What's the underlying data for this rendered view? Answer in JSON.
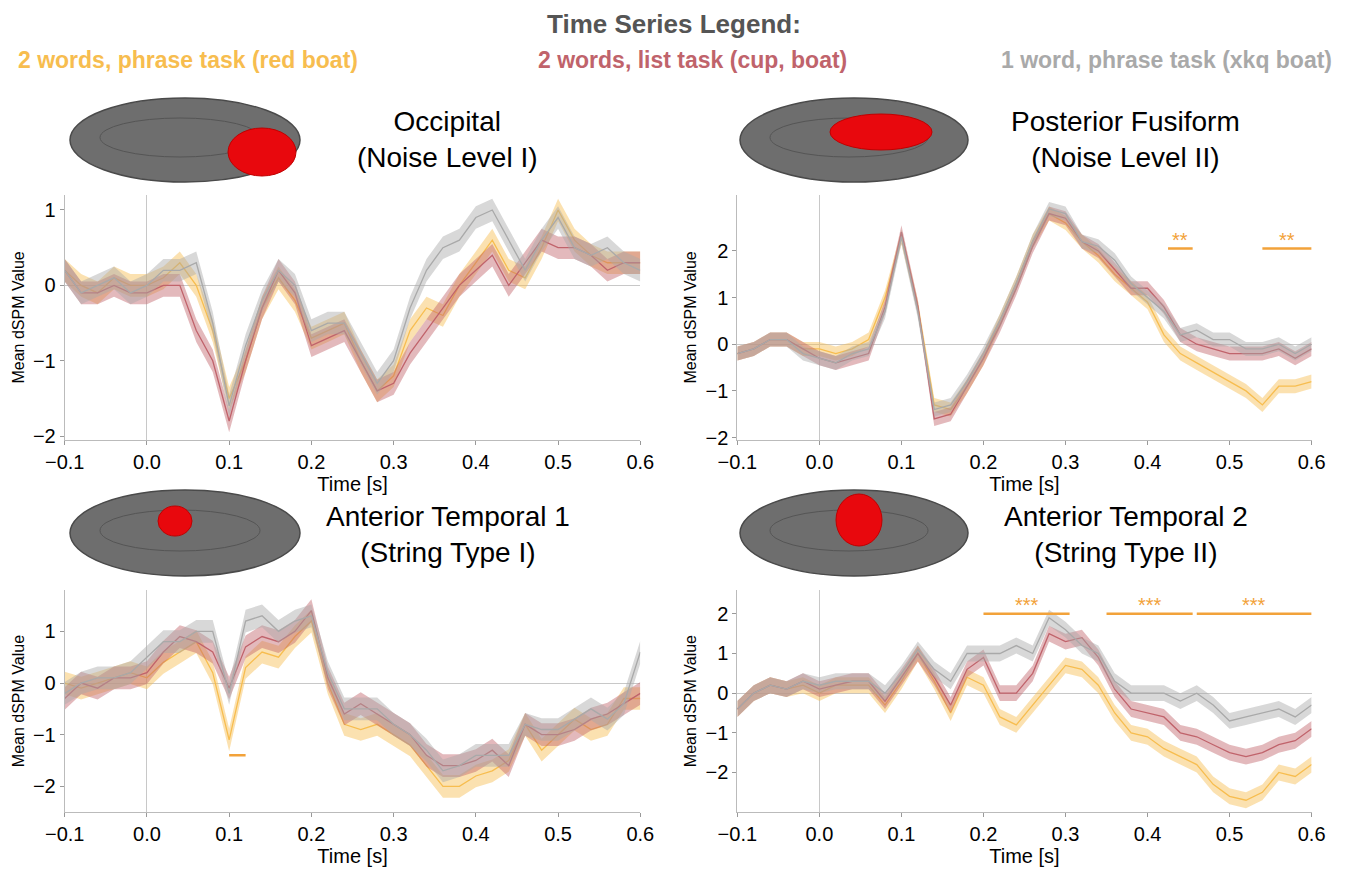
{
  "legend_title": "Time Series Legend:",
  "legend": "top",
  "chart_data": [
    {
      "type": "line",
      "title": "Occipital",
      "subtitle": "(Noise Level I)",
      "xlabel": "Time [s]",
      "ylabel": "Mean dSPM Value",
      "x": [
        -0.1,
        -0.08,
        -0.06,
        -0.04,
        -0.02,
        0,
        0.02,
        0.04,
        0.06,
        0.08,
        0.1,
        0.12,
        0.14,
        0.16,
        0.18,
        0.2,
        0.22,
        0.24,
        0.26,
        0.28,
        0.3,
        0.32,
        0.34,
        0.36,
        0.38,
        0.4,
        0.42,
        0.44,
        0.46,
        0.48,
        0.5,
        0.52,
        0.54,
        0.56,
        0.58,
        0.6
      ],
      "xlim": [
        -0.1,
        0.6
      ],
      "xticks": [
        {
          "value": -0.1,
          "label": "−0.1"
        },
        {
          "value": 0,
          "label": "0.0"
        },
        0.1,
        0.2,
        0.3,
        0.4,
        0.5,
        0.6
      ],
      "ylim": [
        -2.05,
        1.2
      ],
      "yticks": [
        {
          "value": -2,
          "label": "−2"
        },
        {
          "value": -1,
          "label": "−1"
        },
        0,
        1
      ],
      "series": [
        {
          "name": "2 words, phrase task (red boat)",
          "color": "#f7bd4f",
          "error": 0.15,
          "values": [
            0.2,
            0,
            -0.1,
            0.1,
            0,
            0,
            0.1,
            0.3,
            0,
            -0.6,
            -1.5,
            -1.0,
            -0.3,
            0.1,
            -0.2,
            -0.7,
            -0.6,
            -0.5,
            -1.0,
            -1.4,
            -1.2,
            -0.6,
            -0.3,
            -0.4,
            0.0,
            0.3,
            0.6,
            0.2,
            0.1,
            0.5,
            1.0,
            0.6,
            0.4,
            0.3,
            0.3,
            0.3
          ]
        },
        {
          "name": "2 words, list task (cup, boat)",
          "color": "#c0636b",
          "error": 0.15,
          "values": [
            0.2,
            -0.1,
            -0.1,
            0,
            -0.1,
            -0.1,
            0.0,
            0.0,
            -0.6,
            -1.0,
            -1.8,
            -1.0,
            -0.3,
            0.2,
            -0.1,
            -0.8,
            -0.7,
            -0.6,
            -1.0,
            -1.4,
            -1.3,
            -0.9,
            -0.6,
            -0.3,
            0.0,
            0.2,
            0.4,
            0.0,
            0.3,
            0.6,
            0.5,
            0.5,
            0.4,
            0.2,
            0.3,
            0.3
          ]
        },
        {
          "name": "1 word, phrase task (xkq boat)",
          "color": "#a9a9a9",
          "error": 0.15,
          "values": [
            0.2,
            -0.1,
            0,
            0.1,
            -0.1,
            0.0,
            0.2,
            0.2,
            0.3,
            -0.5,
            -1.6,
            -0.8,
            -0.2,
            0.2,
            0.0,
            -0.6,
            -0.5,
            -0.5,
            -0.9,
            -1.3,
            -1.0,
            -0.3,
            0.2,
            0.5,
            0.6,
            0.9,
            1.0,
            0.6,
            0.2,
            0.6,
            0.9,
            0.5,
            0.4,
            0.5,
            0.3,
            0.2
          ]
        }
      ],
      "significance": []
    },
    {
      "type": "line",
      "title": "Posterior Fusiform",
      "subtitle": "(Noise Level II)",
      "xlabel": "Time [s]",
      "ylabel": "Mean dSPM Value",
      "x": [
        -0.1,
        -0.08,
        -0.06,
        -0.04,
        -0.02,
        0,
        0.02,
        0.04,
        0.06,
        0.08,
        0.1,
        0.12,
        0.14,
        0.16,
        0.18,
        0.2,
        0.22,
        0.24,
        0.26,
        0.28,
        0.3,
        0.32,
        0.34,
        0.36,
        0.38,
        0.4,
        0.42,
        0.44,
        0.46,
        0.48,
        0.5,
        0.52,
        0.54,
        0.56,
        0.58,
        0.6
      ],
      "xlim": [
        -0.1,
        0.6
      ],
      "xticks": [
        {
          "value": -0.1,
          "label": "−0.1"
        },
        {
          "value": 0,
          "label": "0.0"
        },
        0.1,
        0.2,
        0.3,
        0.4,
        0.5,
        0.6
      ],
      "ylim": [
        -2.05,
        3.2
      ],
      "yticks": [
        {
          "value": -2,
          "label": "−2"
        },
        {
          "value": -1,
          "label": "−1"
        },
        0,
        1,
        2
      ],
      "series": [
        {
          "name": "2 words, phrase task (red boat)",
          "color": "#f7bd4f",
          "error": 0.15,
          "values": [
            -0.2,
            -0.1,
            0.1,
            0.1,
            -0.1,
            -0.1,
            -0.2,
            -0.1,
            0.1,
            1.0,
            2.3,
            0.8,
            -1.3,
            -1.4,
            -0.9,
            -0.3,
            0.5,
            1.3,
            2.2,
            2.8,
            2.6,
            2.2,
            1.9,
            1.5,
            1.2,
            0.9,
            0.2,
            -0.2,
            -0.4,
            -0.6,
            -0.8,
            -1.0,
            -1.3,
            -0.9,
            -0.9,
            -0.8
          ]
        },
        {
          "name": "2 words, list task (cup, boat)",
          "color": "#c0636b",
          "error": 0.15,
          "values": [
            -0.2,
            -0.1,
            0.1,
            0.1,
            -0.1,
            -0.3,
            -0.4,
            -0.3,
            -0.2,
            0.8,
            2.4,
            0.8,
            -1.6,
            -1.5,
            -0.9,
            -0.3,
            0.4,
            1.2,
            2.1,
            2.8,
            2.7,
            2.2,
            2.0,
            1.6,
            1.2,
            1.2,
            0.8,
            0.2,
            0,
            -0.1,
            -0.2,
            -0.2,
            -0.2,
            -0.1,
            -0.3,
            -0.1
          ]
        },
        {
          "name": "1 word, phrase task (xkq boat)",
          "color": "#a9a9a9",
          "error": 0.15,
          "values": [
            -0.2,
            -0.1,
            0.1,
            0.1,
            -0.2,
            -0.3,
            -0.4,
            -0.2,
            -0.1,
            0.7,
            2.3,
            0.7,
            -1.4,
            -1.3,
            -0.8,
            -0.2,
            0.5,
            1.3,
            2.2,
            2.9,
            2.8,
            2.2,
            2.1,
            1.8,
            1.3,
            1.0,
            0.7,
            0.2,
            0.3,
            0.1,
            0.1,
            -0.1,
            -0.1,
            0,
            -0.2,
            0
          ]
        }
      ],
      "significance": [
        {
          "start": 0.425,
          "end": 0.455,
          "y": 2.05,
          "label": "**"
        },
        {
          "start": 0.54,
          "end": 0.6,
          "y": 2.05,
          "label": "**"
        }
      ],
      "sig_color": "#f2a23a"
    },
    {
      "type": "line",
      "title": "Anterior Temporal 1",
      "subtitle": "(String Type I)",
      "xlabel": "Time [s]",
      "ylabel": "Mean dSPM Value",
      "x": [
        -0.1,
        -0.08,
        -0.06,
        -0.04,
        -0.02,
        0,
        0.02,
        0.04,
        0.06,
        0.08,
        0.1,
        0.12,
        0.14,
        0.16,
        0.18,
        0.2,
        0.22,
        0.24,
        0.26,
        0.28,
        0.3,
        0.32,
        0.34,
        0.36,
        0.38,
        0.4,
        0.42,
        0.44,
        0.46,
        0.48,
        0.5,
        0.52,
        0.54,
        0.56,
        0.58,
        0.6
      ],
      "xlim": [
        -0.1,
        0.6
      ],
      "xticks": [
        {
          "value": -0.1,
          "label": "−0.1"
        },
        {
          "value": 0,
          "label": "0.0"
        },
        0.1,
        0.2,
        0.3,
        0.4,
        0.5,
        0.6
      ],
      "ylim": [
        -2.5,
        1.8
      ],
      "yticks": [
        {
          "value": -2,
          "label": "−2"
        },
        {
          "value": -1,
          "label": "−1"
        },
        0,
        1
      ],
      "series": [
        {
          "name": "2 words, phrase task (red boat)",
          "color": "#f7bd4f",
          "error": 0.22,
          "values": [
            0,
            -0.1,
            0,
            0.1,
            0.2,
            0.1,
            0.4,
            0.6,
            0.8,
            0.2,
            -1.1,
            0.3,
            0.6,
            0.5,
            0.9,
            1.2,
            0,
            -0.8,
            -0.9,
            -0.8,
            -1.0,
            -1.2,
            -1.6,
            -2.0,
            -2.0,
            -1.8,
            -1.7,
            -1.5,
            -0.8,
            -1.3,
            -1.0,
            -0.7,
            -0.9,
            -0.8,
            -0.3,
            -0.3
          ]
        },
        {
          "name": "2 words, list task (cup, boat)",
          "color": "#c0636b",
          "error": 0.22,
          "values": [
            -0.3,
            0,
            -0.1,
            0.1,
            0.1,
            0.2,
            0.6,
            0.9,
            0.8,
            0.6,
            -0.1,
            0.7,
            0.9,
            0.8,
            1.0,
            1.4,
            0.1,
            -0.6,
            -0.4,
            -0.6,
            -0.8,
            -1.0,
            -1.4,
            -1.6,
            -1.6,
            -1.5,
            -1.3,
            -1.6,
            -0.8,
            -1.0,
            -1.0,
            -0.9,
            -0.7,
            -0.6,
            -0.4,
            -0.2
          ]
        },
        {
          "name": "1 word, phrase task (xkq boat)",
          "color": "#a9a9a9",
          "error": 0.22,
          "values": [
            -0.2,
            0,
            0.1,
            0.1,
            0.2,
            0.5,
            0.8,
            0.8,
            1.0,
            1.0,
            -0.2,
            1.2,
            1.3,
            1.0,
            1.2,
            1.3,
            0.2,
            -0.5,
            -0.5,
            -0.5,
            -0.8,
            -1.0,
            -1.3,
            -1.7,
            -1.6,
            -1.4,
            -1.4,
            -1.4,
            -0.8,
            -0.9,
            -0.9,
            -0.7,
            -0.5,
            -0.7,
            -0.4,
            0.6
          ]
        }
      ],
      "significance": [
        {
          "start": 0.1,
          "end": 0.12,
          "y": -1.4
        }
      ],
      "sig_color": "#f2a23a"
    },
    {
      "type": "line",
      "title": "Anterior Temporal 2",
      "subtitle": "(String Type II)",
      "xlabel": "Time [s]",
      "ylabel": "Mean dSPM Value",
      "x": [
        -0.1,
        -0.08,
        -0.06,
        -0.04,
        -0.02,
        0,
        0.02,
        0.04,
        0.06,
        0.08,
        0.1,
        0.12,
        0.14,
        0.16,
        0.18,
        0.2,
        0.22,
        0.24,
        0.26,
        0.28,
        0.3,
        0.32,
        0.34,
        0.36,
        0.38,
        0.4,
        0.42,
        0.44,
        0.46,
        0.48,
        0.5,
        0.52,
        0.54,
        0.56,
        0.58,
        0.6
      ],
      "xlim": [
        -0.1,
        0.6
      ],
      "xticks": [
        {
          "value": -0.1,
          "label": "−0.1"
        },
        {
          "value": 0,
          "label": "0.0"
        },
        0.1,
        0.2,
        0.3,
        0.4,
        0.5,
        0.6
      ],
      "ylim": [
        -3.0,
        2.6
      ],
      "yticks": [
        {
          "value": -2,
          "label": "−2"
        },
        {
          "value": -1,
          "label": "−1"
        },
        0,
        1,
        2
      ],
      "series": [
        {
          "name": "2 words, phrase task (red boat)",
          "color": "#f7bd4f",
          "error": 0.2,
          "values": [
            -0.4,
            0,
            0.2,
            0.1,
            0.2,
            0,
            0.2,
            0.2,
            0.2,
            -0.3,
            0.3,
            1.0,
            0.3,
            -0.5,
            0.4,
            0.2,
            -0.6,
            -0.8,
            -0.3,
            0.2,
            0.7,
            0.6,
            0.2,
            -0.5,
            -1.0,
            -1.1,
            -1.4,
            -1.6,
            -1.8,
            -2.3,
            -2.6,
            -2.7,
            -2.5,
            -2.0,
            -2.1,
            -1.8
          ]
        },
        {
          "name": "2 words, list task (cup, boat)",
          "color": "#c0636b",
          "error": 0.2,
          "values": [
            -0.4,
            0,
            0.2,
            0.1,
            0.3,
            0.1,
            0.2,
            0.3,
            0.3,
            -0.2,
            0.4,
            1.0,
            0.4,
            -0.3,
            0.6,
            0.9,
            0.0,
            0.0,
            0.5,
            1.5,
            1.3,
            1.4,
            0.9,
            0.1,
            -0.4,
            -0.5,
            -0.6,
            -1.0,
            -1.1,
            -1.3,
            -1.5,
            -1.6,
            -1.5,
            -1.3,
            -1.2,
            -0.9
          ]
        },
        {
          "name": "1 word, phrase task (xkq boat)",
          "color": "#a9a9a9",
          "error": 0.2,
          "values": [
            -0.4,
            0,
            0.2,
            0.1,
            0.3,
            0.2,
            0.3,
            0.3,
            0.3,
            0,
            0.5,
            1.1,
            0.6,
            0.3,
            1.0,
            1.0,
            1.0,
            1.2,
            1.0,
            1.9,
            1.6,
            1.2,
            1.0,
            0.3,
            0.0,
            0.0,
            0.0,
            -0.2,
            0.0,
            -0.3,
            -0.7,
            -0.6,
            -0.5,
            -0.4,
            -0.6,
            -0.3
          ]
        }
      ],
      "significance": [
        {
          "start": 0.2,
          "end": 0.305,
          "y": 2.0,
          "label": "***"
        },
        {
          "start": 0.35,
          "end": 0.455,
          "y": 2.0,
          "label": "***"
        },
        {
          "start": 0.46,
          "end": 0.6,
          "y": 2.0,
          "label": "***"
        }
      ],
      "sig_color": "#f2a23a"
    }
  ]
}
